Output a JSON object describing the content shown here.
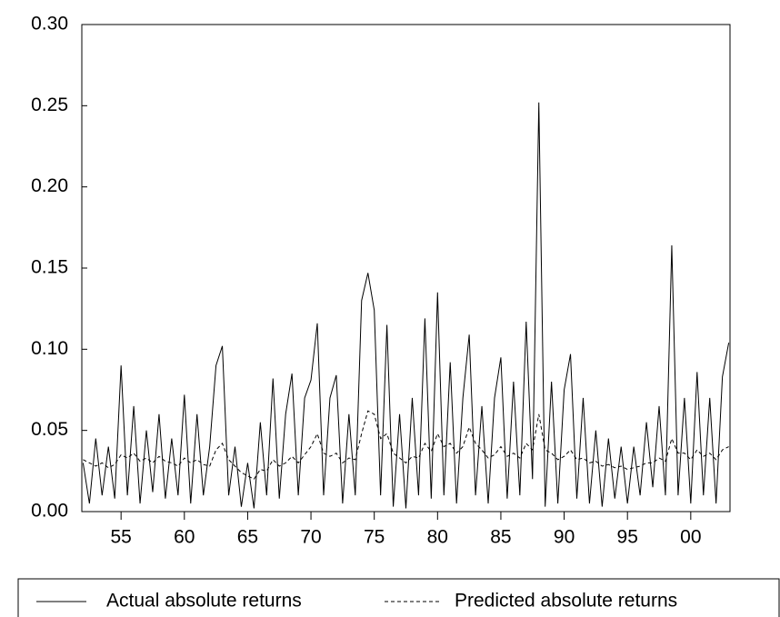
{
  "chart_data": {
    "type": "line",
    "x": [
      1952,
      1952.5,
      1953,
      1953.5,
      1954,
      1954.5,
      1955,
      1955.5,
      1956,
      1956.5,
      1957,
      1957.5,
      1958,
      1958.5,
      1959,
      1959.5,
      1960,
      1960.5,
      1961,
      1961.5,
      1962,
      1962.5,
      1963,
      1963.5,
      1964,
      1964.5,
      1965,
      1965.5,
      1966,
      1966.5,
      1967,
      1967.5,
      1968,
      1968.5,
      1969,
      1969.5,
      1970,
      1970.5,
      1971,
      1971.5,
      1972,
      1972.5,
      1973,
      1973.5,
      1974,
      1974.5,
      1975,
      1975.5,
      1976,
      1976.5,
      1977,
      1977.5,
      1978,
      1978.5,
      1979,
      1979.5,
      1980,
      1980.5,
      1981,
      1981.5,
      1982,
      1982.5,
      1983,
      1983.5,
      1984,
      1984.5,
      1985,
      1985.5,
      1986,
      1986.5,
      1987,
      1987.5,
      1988,
      1988.5,
      1989,
      1989.5,
      1990,
      1990.5,
      1991,
      1991.5,
      1992,
      1992.5,
      1993,
      1993.5,
      1994,
      1994.5,
      1995,
      1995.5,
      1996,
      1996.5,
      1997,
      1997.5,
      1998,
      1998.5,
      1999,
      1999.5,
      2000,
      2000.5,
      2001,
      2001.5,
      2002,
      2002.5,
      2003
    ],
    "series": [
      {
        "name": "Actual absolute returns",
        "color": "#000000",
        "style": "solid",
        "values": [
          0.03,
          0.005,
          0.045,
          0.01,
          0.04,
          0.008,
          0.09,
          0.01,
          0.065,
          0.005,
          0.05,
          0.012,
          0.06,
          0.008,
          0.045,
          0.01,
          0.072,
          0.005,
          0.06,
          0.01,
          0.04,
          0.09,
          0.102,
          0.01,
          0.04,
          0.003,
          0.03,
          0.002,
          0.055,
          0.01,
          0.082,
          0.008,
          0.06,
          0.085,
          0.01,
          0.07,
          0.081,
          0.116,
          0.01,
          0.07,
          0.084,
          0.005,
          0.06,
          0.01,
          0.13,
          0.147,
          0.124,
          0.01,
          0.115,
          0.003,
          0.06,
          0.002,
          0.07,
          0.01,
          0.119,
          0.008,
          0.135,
          0.01,
          0.092,
          0.005,
          0.07,
          0.109,
          0.01,
          0.065,
          0.005,
          0.07,
          0.095,
          0.008,
          0.08,
          0.01,
          0.117,
          0.02,
          0.252,
          0.003,
          0.08,
          0.005,
          0.075,
          0.097,
          0.008,
          0.07,
          0.005,
          0.05,
          0.003,
          0.045,
          0.008,
          0.04,
          0.005,
          0.04,
          0.01,
          0.055,
          0.015,
          0.065,
          0.01,
          0.164,
          0.01,
          0.07,
          0.005,
          0.086,
          0.01,
          0.07,
          0.005,
          0.083,
          0.104
        ]
      },
      {
        "name": "Predicted absolute returns",
        "color": "#000000",
        "style": "dashed",
        "values": [
          0.032,
          0.03,
          0.028,
          0.03,
          0.027,
          0.029,
          0.035,
          0.033,
          0.036,
          0.031,
          0.033,
          0.03,
          0.034,
          0.031,
          0.03,
          0.028,
          0.033,
          0.03,
          0.032,
          0.029,
          0.028,
          0.038,
          0.042,
          0.032,
          0.028,
          0.024,
          0.022,
          0.02,
          0.026,
          0.025,
          0.032,
          0.028,
          0.03,
          0.034,
          0.03,
          0.035,
          0.04,
          0.048,
          0.036,
          0.034,
          0.036,
          0.03,
          0.033,
          0.032,
          0.048,
          0.062,
          0.06,
          0.045,
          0.048,
          0.036,
          0.033,
          0.03,
          0.034,
          0.033,
          0.042,
          0.037,
          0.048,
          0.04,
          0.042,
          0.036,
          0.04,
          0.052,
          0.042,
          0.038,
          0.033,
          0.035,
          0.04,
          0.034,
          0.036,
          0.033,
          0.042,
          0.038,
          0.06,
          0.038,
          0.036,
          0.032,
          0.034,
          0.038,
          0.032,
          0.033,
          0.03,
          0.031,
          0.028,
          0.029,
          0.027,
          0.028,
          0.026,
          0.027,
          0.028,
          0.03,
          0.03,
          0.033,
          0.031,
          0.045,
          0.036,
          0.036,
          0.032,
          0.038,
          0.034,
          0.036,
          0.032,
          0.038,
          0.04
        ]
      }
    ],
    "xlim": [
      1951.9,
      2003.1
    ],
    "xticks": [
      {
        "value": 1955,
        "label": "55"
      },
      {
        "value": 1960,
        "label": "60"
      },
      {
        "value": 1965,
        "label": "65"
      },
      {
        "value": 1970,
        "label": "70"
      },
      {
        "value": 1975,
        "label": "75"
      },
      {
        "value": 1980,
        "label": "80"
      },
      {
        "value": 1985,
        "label": "85"
      },
      {
        "value": 1990,
        "label": "90"
      },
      {
        "value": 1995,
        "label": "95"
      },
      {
        "value": 2000,
        "label": "00"
      }
    ],
    "ylim": [
      0,
      0.3
    ],
    "yticks": [
      {
        "value": 0,
        "label": "0.00"
      },
      {
        "value": 0.05,
        "label": "0.05"
      },
      {
        "value": 0.1,
        "label": "0.10"
      },
      {
        "value": 0.15,
        "label": "0.15"
      },
      {
        "value": 0.2,
        "label": "0.20"
      },
      {
        "value": 0.25,
        "label": "0.25"
      },
      {
        "value": 0.3,
        "label": "0.30"
      }
    ],
    "grid": false
  }
}
